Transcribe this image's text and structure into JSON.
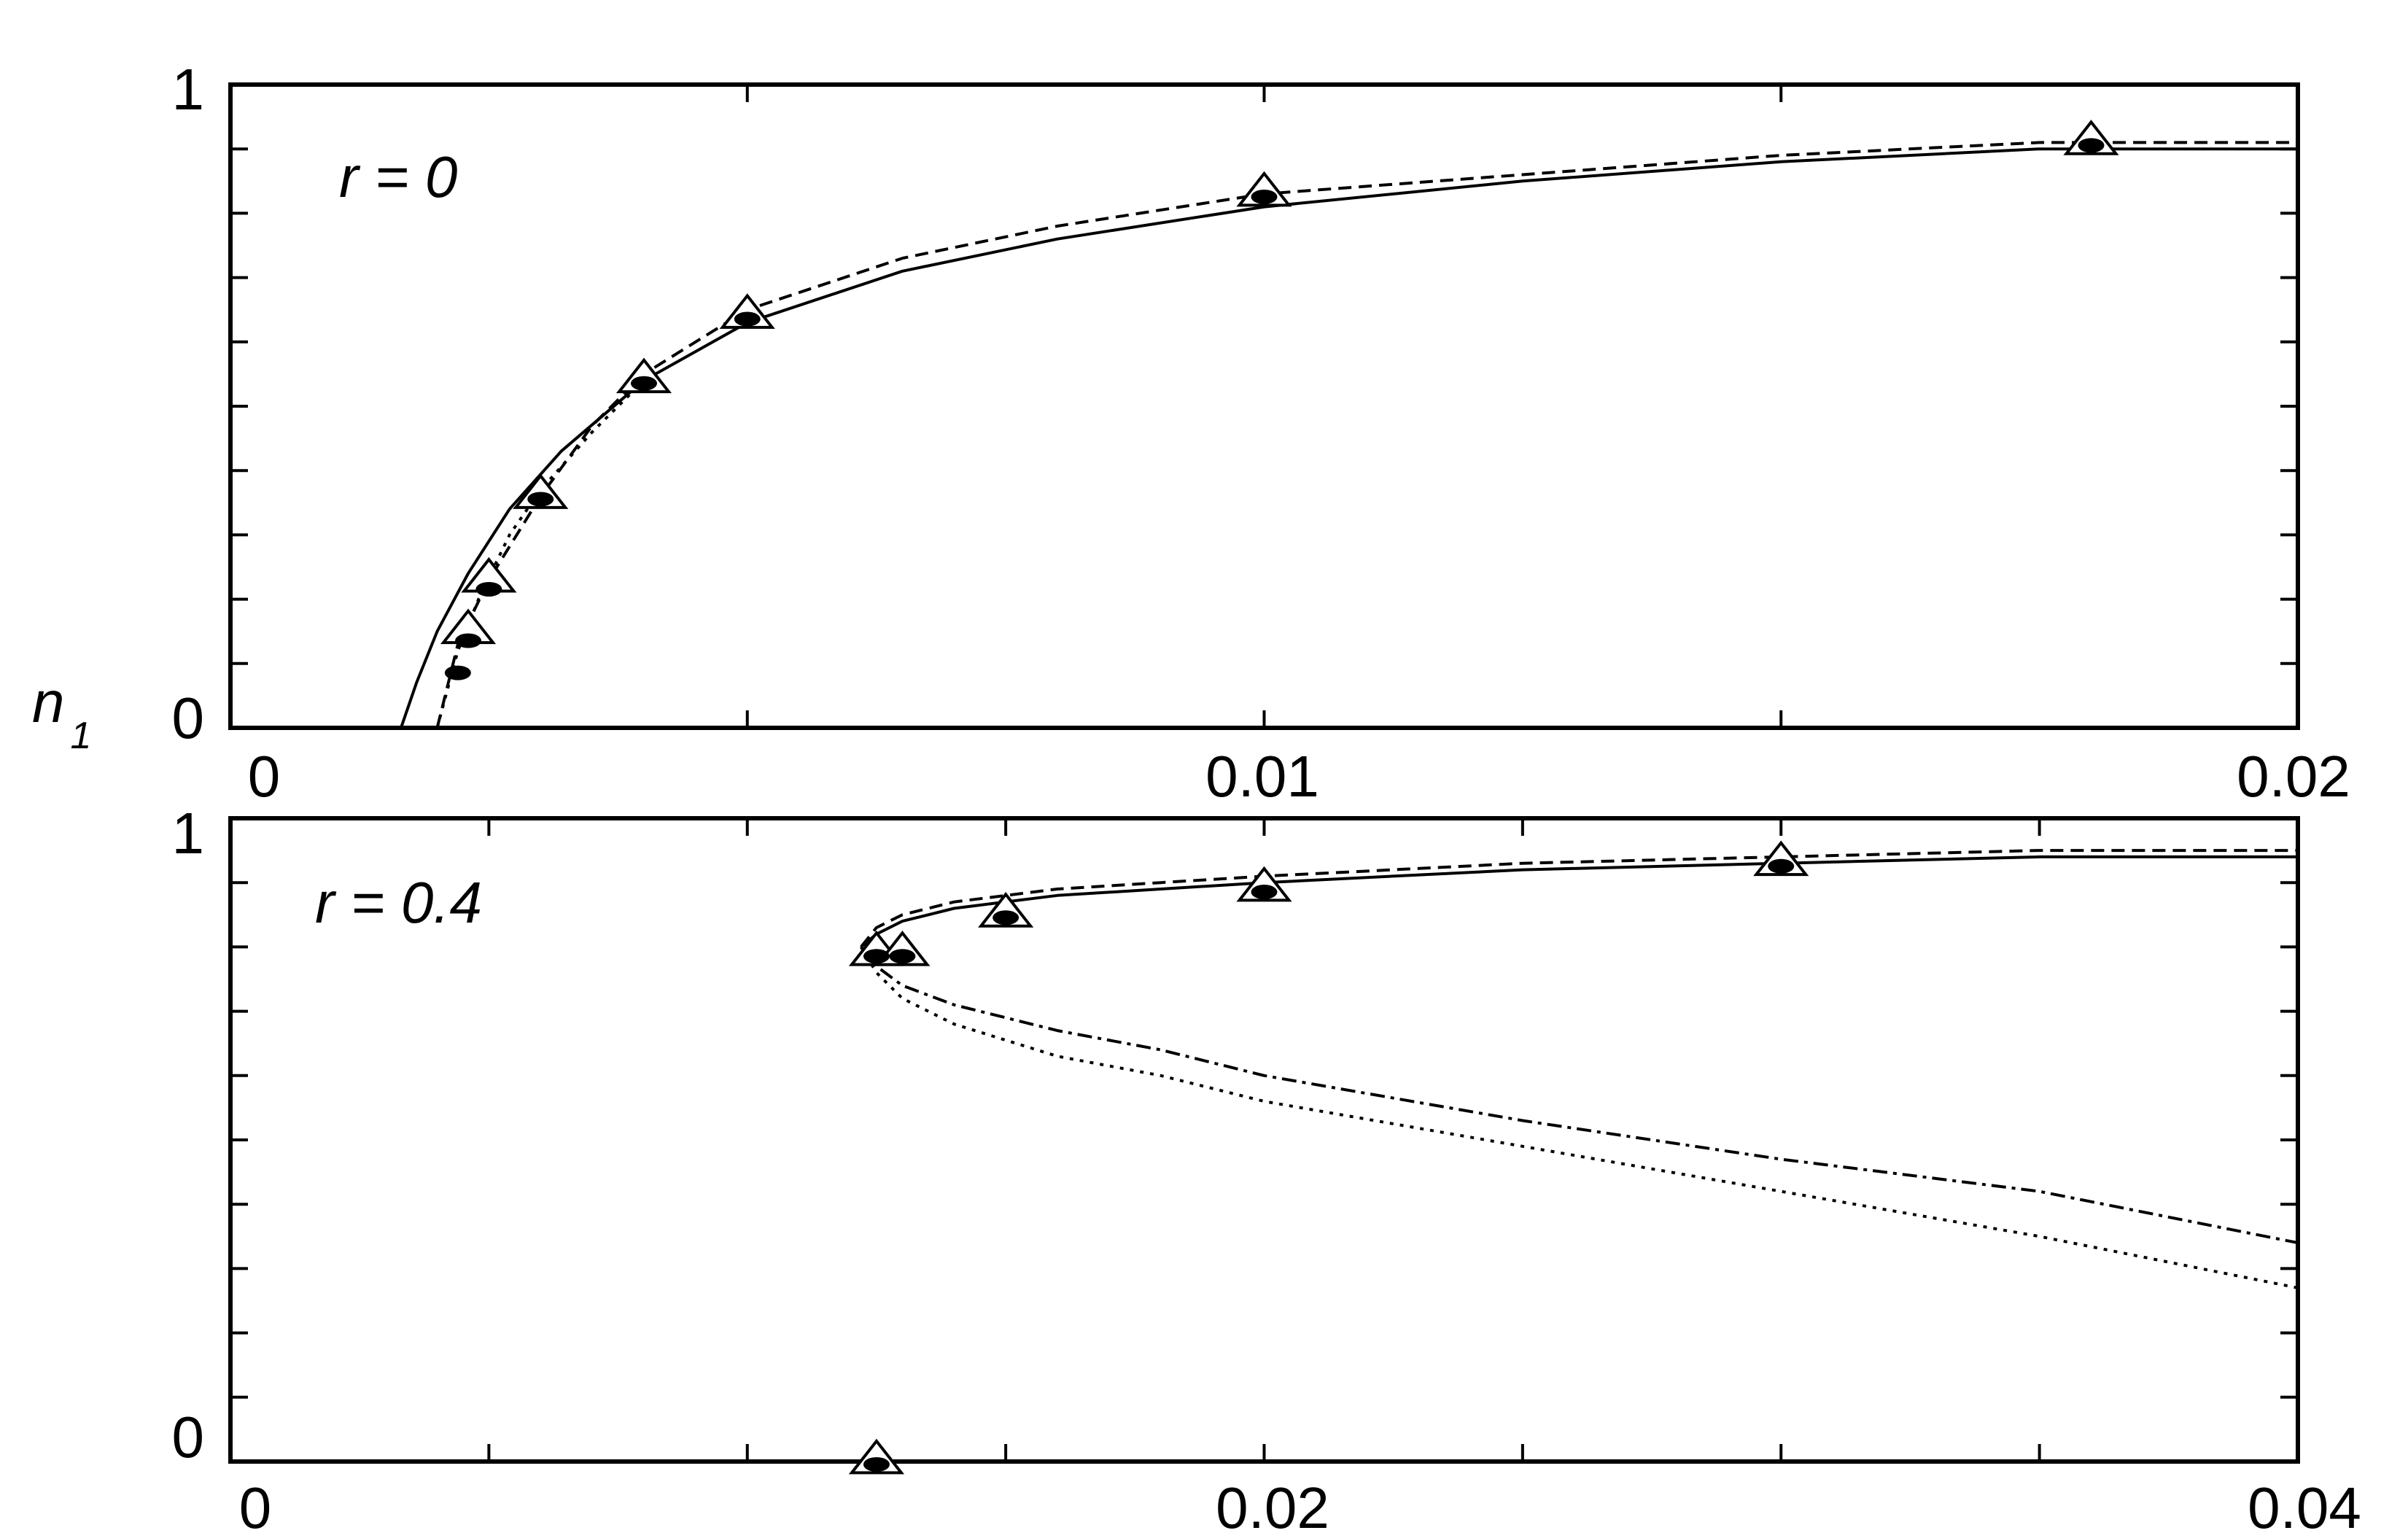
{
  "chart_data": [
    {
      "type": "line",
      "panel_label": "r = 0",
      "xlabel": "",
      "ylabel": "n",
      "ylabel_sub": "1",
      "xlim": [
        0,
        0.02
      ],
      "ylim": [
        0,
        1
      ],
      "x_ticks": [
        0,
        0.01,
        0.02
      ],
      "x_tick_labels": [
        "0",
        "0.01",
        "0.02"
      ],
      "x_minor_ticks": [
        0.005,
        0.015
      ],
      "y_tick_labels": [
        "0",
        "1"
      ],
      "y_minor_ticks": [
        0.1,
        0.2,
        0.3,
        0.4,
        0.5,
        0.6,
        0.7,
        0.8,
        0.9
      ],
      "grid": false,
      "series": [
        {
          "style": "solid",
          "x": [
            0.00165,
            0.0018,
            0.002,
            0.0023,
            0.0027,
            0.0032,
            0.004,
            0.005,
            0.0065,
            0.008,
            0.01,
            0.0125,
            0.015,
            0.0175,
            0.02
          ],
          "y": [
            0.0,
            0.07,
            0.15,
            0.24,
            0.34,
            0.43,
            0.54,
            0.63,
            0.71,
            0.76,
            0.81,
            0.85,
            0.88,
            0.9,
            0.9
          ]
        },
        {
          "style": "dashed",
          "x": [
            0.002,
            0.0022,
            0.0025,
            0.003,
            0.0035,
            0.004,
            0.005,
            0.0065,
            0.008,
            0.01,
            0.0125,
            0.015,
            0.0175,
            0.02
          ],
          "y": [
            0.0,
            0.13,
            0.23,
            0.36,
            0.47,
            0.55,
            0.65,
            0.73,
            0.78,
            0.83,
            0.86,
            0.89,
            0.91,
            0.91
          ]
        },
        {
          "style": "dotted",
          "x": [
            0.002,
            0.0021,
            0.0022,
            0.0024,
            0.0027,
            0.003,
            0.0035,
            0.004
          ],
          "y": [
            0.0,
            0.06,
            0.12,
            0.2,
            0.3,
            0.37,
            0.46,
            0.54
          ]
        }
      ],
      "markers_triangle": [
        {
          "x": 0.0023,
          "y": 0.15
        },
        {
          "x": 0.0025,
          "y": 0.23
        },
        {
          "x": 0.003,
          "y": 0.36
        },
        {
          "x": 0.004,
          "y": 0.54
        },
        {
          "x": 0.005,
          "y": 0.64
        },
        {
          "x": 0.01,
          "y": 0.83
        },
        {
          "x": 0.018,
          "y": 0.91
        }
      ],
      "markers_dot": [
        {
          "x": 0.0022,
          "y": 0.09
        },
        {
          "x": 0.0023,
          "y": 0.14
        },
        {
          "x": 0.0025,
          "y": 0.22
        },
        {
          "x": 0.003,
          "y": 0.36
        },
        {
          "x": 0.004,
          "y": 0.54
        },
        {
          "x": 0.005,
          "y": 0.64
        },
        {
          "x": 0.01,
          "y": 0.83
        },
        {
          "x": 0.018,
          "y": 0.91
        }
      ]
    },
    {
      "type": "line",
      "panel_label": "r = 0.4",
      "xlabel": "",
      "ylabel": "",
      "xlim": [
        0,
        0.04
      ],
      "ylim": [
        0,
        1
      ],
      "x_ticks": [
        0,
        0.02,
        0.04
      ],
      "x_tick_labels": [
        "0",
        "0.02",
        "0.04"
      ],
      "x_minor_ticks": [
        0.005,
        0.01,
        0.015,
        0.025,
        0.03,
        0.035
      ],
      "y_tick_labels": [
        "0",
        "1"
      ],
      "y_minor_ticks": [
        0.1,
        0.2,
        0.3,
        0.4,
        0.5,
        0.6,
        0.7,
        0.8,
        0.9
      ],
      "grid": false,
      "series": [
        {
          "style": "solid",
          "x": [
            0.0122,
            0.0125,
            0.013,
            0.014,
            0.016,
            0.018,
            0.02,
            0.025,
            0.03,
            0.035,
            0.04
          ],
          "y": [
            0.8,
            0.82,
            0.84,
            0.86,
            0.88,
            0.89,
            0.9,
            0.92,
            0.93,
            0.94,
            0.94
          ]
        },
        {
          "style": "dashed",
          "x": [
            0.0122,
            0.0125,
            0.013,
            0.014,
            0.016,
            0.018,
            0.02,
            0.025,
            0.03,
            0.035,
            0.04
          ],
          "y": [
            0.8,
            0.83,
            0.85,
            0.87,
            0.89,
            0.9,
            0.91,
            0.93,
            0.94,
            0.95,
            0.95
          ]
        },
        {
          "style": "dashdot",
          "x": [
            0.0122,
            0.0125,
            0.013,
            0.014,
            0.016,
            0.018,
            0.02,
            0.025,
            0.03,
            0.035,
            0.04
          ],
          "y": [
            0.8,
            0.77,
            0.74,
            0.71,
            0.67,
            0.64,
            0.6,
            0.53,
            0.47,
            0.42,
            0.34
          ]
        },
        {
          "style": "dotted",
          "x": [
            0.0122,
            0.0125,
            0.013,
            0.014,
            0.016,
            0.018,
            0.02,
            0.025,
            0.03,
            0.035,
            0.04
          ],
          "y": [
            0.8,
            0.76,
            0.72,
            0.68,
            0.63,
            0.6,
            0.56,
            0.49,
            0.42,
            0.35,
            0.27
          ]
        }
      ],
      "markers_triangle": [
        {
          "x": 0.0125,
          "y": 0.79
        },
        {
          "x": 0.013,
          "y": 0.79
        },
        {
          "x": 0.015,
          "y": 0.85
        },
        {
          "x": 0.02,
          "y": 0.89
        },
        {
          "x": 0.03,
          "y": 0.93
        },
        {
          "x": 0.0125,
          "y": 0.0
        }
      ],
      "markers_dot": [
        {
          "x": 0.0125,
          "y": 0.79
        },
        {
          "x": 0.013,
          "y": 0.79
        },
        {
          "x": 0.015,
          "y": 0.85
        },
        {
          "x": 0.02,
          "y": 0.89
        },
        {
          "x": 0.03,
          "y": 0.93
        },
        {
          "x": 0.0125,
          "y": 0.0
        }
      ]
    }
  ]
}
